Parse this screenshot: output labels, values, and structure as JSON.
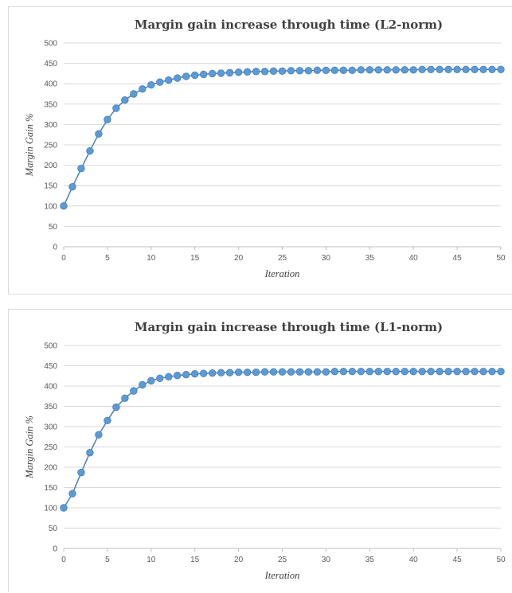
{
  "chart_data": [
    {
      "type": "line",
      "title": "Margin gain increase through time (L2-norm)",
      "xlabel": "Iteration",
      "ylabel": "Margin Gain %",
      "xlim": [
        0,
        50
      ],
      "ylim": [
        0,
        500
      ],
      "x_ticks": [
        "0",
        "5",
        "10",
        "15",
        "20",
        "25",
        "30",
        "35",
        "40",
        "45",
        "50"
      ],
      "y_ticks": [
        "0",
        "50",
        "100",
        "150",
        "200",
        "250",
        "300",
        "350",
        "400",
        "450",
        "500"
      ],
      "grid": true,
      "legend": "none",
      "marker_color": "#5B9BD5",
      "line_color": "#4A7EBB",
      "series": [
        {
          "x": [
            0,
            1,
            2,
            3,
            4,
            5,
            6,
            7,
            8,
            9,
            10,
            11,
            12,
            13,
            14,
            15,
            16,
            17,
            18,
            19,
            20,
            21,
            22,
            23,
            24,
            25,
            26,
            27,
            28,
            29,
            30,
            31,
            32,
            33,
            34,
            35,
            36,
            37,
            38,
            39,
            40,
            41,
            42,
            43,
            44,
            45,
            46,
            47,
            48,
            49,
            50
          ],
          "values": [
            100,
            147,
            192,
            235,
            277,
            312,
            340,
            360,
            375,
            387,
            397,
            404,
            409,
            414,
            418,
            421,
            423,
            425,
            426,
            427,
            428,
            429,
            430,
            430,
            431,
            431,
            432,
            432,
            432,
            433,
            433,
            433,
            433,
            433,
            434,
            434,
            434,
            434,
            434,
            434,
            434,
            435,
            435,
            435,
            435,
            435,
            435,
            435,
            435,
            435,
            435
          ]
        }
      ]
    },
    {
      "type": "line",
      "title": "Margin gain increase through time (L1-norm)",
      "xlabel": "Iteration",
      "ylabel": "Margin Gain %",
      "xlim": [
        0,
        50
      ],
      "ylim": [
        0,
        500
      ],
      "x_ticks": [
        "0",
        "5",
        "10",
        "15",
        "20",
        "25",
        "30",
        "35",
        "40",
        "45",
        "50"
      ],
      "y_ticks": [
        "0",
        "50",
        "100",
        "150",
        "200",
        "250",
        "300",
        "350",
        "400",
        "450",
        "500"
      ],
      "grid": true,
      "legend": "none",
      "marker_color": "#5B9BD5",
      "line_color": "#4A7EBB",
      "series": [
        {
          "x": [
            0,
            1,
            2,
            3,
            4,
            5,
            6,
            7,
            8,
            9,
            10,
            11,
            12,
            13,
            14,
            15,
            16,
            17,
            18,
            19,
            20,
            21,
            22,
            23,
            24,
            25,
            26,
            27,
            28,
            29,
            30,
            31,
            32,
            33,
            34,
            35,
            36,
            37,
            38,
            39,
            40,
            41,
            42,
            43,
            44,
            45,
            46,
            47,
            48,
            49,
            50
          ],
          "values": [
            100,
            135,
            187,
            236,
            280,
            315,
            348,
            370,
            388,
            403,
            413,
            419,
            423,
            426,
            428,
            430,
            431,
            432,
            433,
            433,
            434,
            434,
            434,
            435,
            435,
            435,
            435,
            435,
            435,
            435,
            435,
            436,
            436,
            436,
            436,
            436,
            436,
            436,
            436,
            436,
            436,
            436,
            436,
            436,
            436,
            436,
            436,
            436,
            436,
            436,
            436
          ]
        }
      ]
    }
  ]
}
